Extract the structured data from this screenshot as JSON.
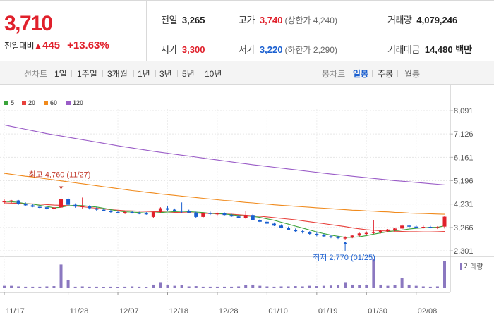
{
  "quote": {
    "price": "3,710",
    "change_label": "전일대비",
    "change_arrow": "▲",
    "change_value": "445",
    "change_rate": "+13.63%",
    "prev_close": {
      "label": "전일",
      "value": "3,265"
    },
    "open": {
      "label": "시가",
      "value": "3,300"
    },
    "high": {
      "label": "고가",
      "value": "3,740",
      "limit_label": "(상한가 4,240)"
    },
    "low": {
      "label": "저가",
      "value": "3,220",
      "limit_label": "(하한가 2,290)"
    },
    "volume": {
      "label": "거래량",
      "value": "4,079,246"
    },
    "amount": {
      "label": "거래대금",
      "value": "14,480 백만"
    }
  },
  "period_bar": {
    "line_group": "선차트",
    "line_periods": [
      "1일",
      "1주일",
      "3개월",
      "1년",
      "3년",
      "5년",
      "10년"
    ],
    "candle_group": "봉차트",
    "candle_periods": [
      "일봉",
      "주봉",
      "월봉"
    ],
    "active_candle": "일봉"
  },
  "colors": {
    "up": "#e0202b",
    "down": "#1a5fd0",
    "ma5": "#3aa43a",
    "ma20": "#e8403b",
    "ma60": "#f08a1c",
    "ma120": "#9a5cc7",
    "volume": "#8b78c0"
  },
  "chart_data": {
    "type": "candlestick",
    "legend": [
      {
        "name": "5",
        "color_key": "ma5"
      },
      {
        "name": "20",
        "color_key": "ma20"
      },
      {
        "name": "60",
        "color_key": "ma60"
      },
      {
        "name": "120",
        "color_key": "ma120"
      }
    ],
    "y_ticks": [
      "8,091",
      "7,126",
      "6,161",
      "5,196",
      "4,231",
      "3,266",
      "2,301"
    ],
    "ylim": [
      2301,
      8091
    ],
    "x_ticks": [
      {
        "label": "11/17",
        "index": 0
      },
      {
        "label": "11/28",
        "index": 9
      },
      {
        "label": "12/07",
        "index": 16
      },
      {
        "label": "12/18",
        "index": 23
      },
      {
        "label": "12/28",
        "index": 30
      },
      {
        "label": "01/10",
        "index": 37
      },
      {
        "label": "01/19",
        "index": 44
      },
      {
        "label": "01/30",
        "index": 51
      },
      {
        "label": "02/08",
        "index": 58
      }
    ],
    "volume_label": "거래량",
    "annotations": [
      {
        "label": "최고 4,760 (11/27)",
        "index": 8,
        "value": 4760,
        "dir": "above"
      },
      {
        "label": "최저 2,770 (01/25)",
        "index": 48,
        "value": 2770,
        "dir": "below"
      }
    ],
    "ohlc": [
      [
        4330,
        4420,
        4250,
        4350
      ],
      [
        4340,
        4400,
        4280,
        4380
      ],
      [
        4380,
        4400,
        4200,
        4250
      ],
      [
        4250,
        4300,
        4150,
        4180
      ],
      [
        4180,
        4230,
        4100,
        4120
      ],
      [
        4120,
        4180,
        4050,
        4100
      ],
      [
        4100,
        4150,
        4000,
        4020
      ],
      [
        4030,
        4100,
        3980,
        4090
      ],
      [
        4090,
        4760,
        4000,
        4450
      ],
      [
        4450,
        4500,
        4150,
        4200
      ],
      [
        4200,
        4260,
        4080,
        4130
      ],
      [
        4120,
        4500,
        4050,
        4150
      ],
      [
        4150,
        4180,
        4010,
        4060
      ],
      [
        4050,
        4100,
        3960,
        4000
      ],
      [
        4000,
        4050,
        3930,
        3950
      ],
      [
        3950,
        3990,
        3860,
        3900
      ],
      [
        3900,
        3950,
        3850,
        3870
      ],
      [
        3870,
        3930,
        3820,
        3900
      ],
      [
        3900,
        3950,
        3840,
        3870
      ],
      [
        3870,
        3910,
        3810,
        3850
      ],
      [
        3850,
        3900,
        3790,
        3830
      ],
      [
        3700,
        3910,
        3650,
        3900
      ],
      [
        3900,
        4100,
        3850,
        4060
      ],
      [
        4060,
        4150,
        3960,
        4000
      ],
      [
        4000,
        4050,
        3920,
        3960
      ],
      [
        3960,
        4300,
        3850,
        3950
      ],
      [
        3950,
        4000,
        3850,
        3880
      ],
      [
        3880,
        3920,
        3650,
        3700
      ],
      [
        3700,
        3900,
        3650,
        3870
      ],
      [
        3870,
        3920,
        3780,
        3820
      ],
      [
        3820,
        3880,
        3770,
        3850
      ],
      [
        3850,
        3890,
        3760,
        3780
      ],
      [
        3780,
        3830,
        3700,
        3720
      ],
      [
        3720,
        3780,
        3640,
        3660
      ],
      [
        3660,
        3950,
        3620,
        3780
      ],
      [
        3780,
        3820,
        3560,
        3580
      ],
      [
        3580,
        3620,
        3480,
        3500
      ],
      [
        3500,
        3560,
        3400,
        3420
      ],
      [
        3420,
        3470,
        3320,
        3340
      ],
      [
        3340,
        3390,
        3230,
        3250
      ],
      [
        3250,
        3300,
        3150,
        3170
      ],
      [
        3170,
        3220,
        3080,
        3110
      ],
      [
        3110,
        3160,
        3020,
        3060
      ],
      [
        3060,
        3110,
        2960,
        3000
      ],
      [
        3000,
        3060,
        2900,
        2950
      ],
      [
        2950,
        3000,
        2860,
        2900
      ],
      [
        2900,
        2950,
        2820,
        2870
      ],
      [
        2870,
        2920,
        2790,
        2830
      ],
      [
        2830,
        2900,
        2770,
        2850
      ],
      [
        2850,
        2950,
        2820,
        2930
      ],
      [
        2930,
        3050,
        2900,
        3020
      ],
      [
        3020,
        3100,
        2950,
        3040
      ],
      [
        3040,
        3580,
        3000,
        3080
      ],
      [
        3080,
        3150,
        3020,
        3120
      ],
      [
        3120,
        3200,
        3060,
        3180
      ],
      [
        3180,
        3250,
        3100,
        3220
      ],
      [
        3220,
        3400,
        3150,
        3340
      ],
      [
        3340,
        3380,
        3260,
        3300
      ],
      [
        3300,
        3360,
        3240,
        3280
      ],
      [
        3280,
        3340,
        3220,
        3290
      ],
      [
        3290,
        3330,
        3230,
        3260
      ],
      [
        3260,
        3320,
        3200,
        3280
      ],
      [
        3300,
        3740,
        3220,
        3710
      ]
    ],
    "volume": [
      0.08,
      0.08,
      0.06,
      0.05,
      0.05,
      0.05,
      0.06,
      0.07,
      0.8,
      0.28,
      0.05,
      0.06,
      0.05,
      0.05,
      0.04,
      0.05,
      0.04,
      0.05,
      0.06,
      0.05,
      0.04,
      0.12,
      0.18,
      0.12,
      0.08,
      0.1,
      0.06,
      0.07,
      0.05,
      0.05,
      0.05,
      0.05,
      0.05,
      0.06,
      0.1,
      0.12,
      0.08,
      0.06,
      0.05,
      0.06,
      0.06,
      0.07,
      0.06,
      0.08,
      0.07,
      0.08,
      0.09,
      0.1,
      0.18,
      0.12,
      0.1,
      0.1,
      1.0,
      0.12,
      0.08,
      0.1,
      0.35,
      0.12,
      0.08,
      0.06,
      0.05,
      0.06,
      0.92
    ],
    "ma5": [
      4340,
      4330,
      4300,
      4250,
      4230,
      4180,
      4130,
      4080,
      4100,
      4160,
      4180,
      4170,
      4140,
      4110,
      4060,
      4000,
      3950,
      3910,
      3900,
      3880,
      3860,
      3860,
      3880,
      3900,
      3920,
      3930,
      3920,
      3900,
      3880,
      3850,
      3840,
      3820,
      3790,
      3760,
      3740,
      3720,
      3680,
      3620,
      3560,
      3480,
      3400,
      3320,
      3240,
      3160,
      3080,
      3010,
      2950,
      2900,
      2860,
      2860,
      2880,
      2930,
      2990,
      3040,
      3090,
      3130,
      3160,
      3200,
      3230,
      3250,
      3270,
      3270,
      3330
    ],
    "ma20": [
      4280,
      4270,
      4260,
      4250,
      4240,
      4230,
      4210,
      4190,
      4180,
      4170,
      4150,
      4120,
      4090,
      4060,
      4030,
      4000,
      3980,
      3960,
      3950,
      3940,
      3930,
      3920,
      3910,
      3900,
      3890,
      3880,
      3870,
      3860,
      3850,
      3840,
      3830,
      3820,
      3810,
      3790,
      3770,
      3750,
      3730,
      3700,
      3670,
      3640,
      3610,
      3580,
      3540,
      3500,
      3460,
      3420,
      3380,
      3340,
      3300,
      3250,
      3210,
      3170,
      3150,
      3130,
      3120,
      3110,
      3100,
      3090,
      3090,
      3080,
      3080,
      3090,
      3100
    ],
    "ma60": [
      5500,
      5460,
      5420,
      5380,
      5350,
      5310,
      5270,
      5230,
      5190,
      5150,
      5110,
      5070,
      5030,
      4990,
      4950,
      4910,
      4870,
      4830,
      4790,
      4760,
      4720,
      4690,
      4650,
      4620,
      4590,
      4560,
      4530,
      4500,
      4470,
      4440,
      4410,
      4380,
      4360,
      4330,
      4300,
      4280,
      4250,
      4230,
      4200,
      4180,
      4160,
      4140,
      4120,
      4100,
      4080,
      4060,
      4040,
      4020,
      4000,
      3980,
      3970,
      3950,
      3940,
      3920,
      3910,
      3890,
      3880,
      3860,
      3850,
      3840,
      3830,
      3820,
      3810
    ],
    "ma120": [
      7500,
      7440,
      7380,
      7320,
      7260,
      7200,
      7140,
      7090,
      7040,
      6990,
      6940,
      6890,
      6840,
      6790,
      6740,
      6690,
      6640,
      6590,
      6545,
      6500,
      6455,
      6410,
      6370,
      6330,
      6290,
      6250,
      6210,
      6170,
      6130,
      6090,
      6050,
      6010,
      5970,
      5930,
      5890,
      5855,
      5820,
      5785,
      5750,
      5715,
      5680,
      5645,
      5610,
      5575,
      5540,
      5505,
      5470,
      5440,
      5410,
      5380,
      5350,
      5320,
      5290,
      5260,
      5230,
      5200,
      5175,
      5150,
      5125,
      5100,
      5075,
      5050,
      5025
    ]
  }
}
